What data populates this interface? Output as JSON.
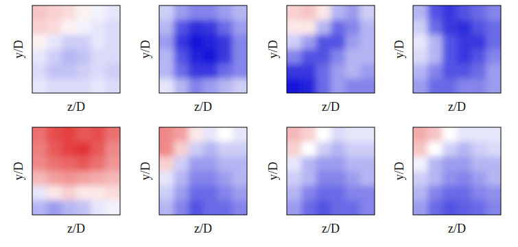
{
  "chart_data": [
    {
      "type": "heatmap",
      "xlabel": "z/D",
      "ylabel": "y/D",
      "tick_labels": false,
      "color_range": [
        -1,
        1
      ],
      "cells": [
        [
          0.25,
          0.2,
          0.15,
          0.05,
          -0.05,
          -0.1
        ],
        [
          0.2,
          0.15,
          0.05,
          -0.05,
          -0.1,
          -0.15
        ],
        [
          0.05,
          -0.1,
          -0.2,
          -0.2,
          -0.1,
          -0.15
        ],
        [
          -0.1,
          -0.2,
          -0.3,
          -0.25,
          -0.15,
          -0.15
        ],
        [
          -0.15,
          -0.25,
          -0.25,
          -0.2,
          -0.15,
          -0.2
        ],
        [
          -0.1,
          -0.15,
          -0.15,
          -0.15,
          -0.1,
          -0.15
        ]
      ]
    },
    {
      "type": "heatmap",
      "xlabel": "z/D",
      "ylabel": "y/D",
      "tick_labels": false,
      "color_range": [
        -1,
        1
      ],
      "cells": [
        [
          -0.2,
          -0.4,
          -0.5,
          -0.5,
          -0.4,
          -0.3
        ],
        [
          -0.3,
          -0.7,
          -0.85,
          -0.8,
          -0.6,
          -0.4
        ],
        [
          -0.4,
          -0.8,
          -0.95,
          -0.9,
          -0.8,
          -0.5
        ],
        [
          -0.3,
          -0.7,
          -0.9,
          -0.95,
          -0.8,
          -0.5
        ],
        [
          -0.3,
          -0.6,
          -0.8,
          -0.8,
          -0.6,
          -0.5
        ],
        [
          -0.1,
          -0.3,
          -0.5,
          -0.4,
          -0.3,
          -0.2
        ]
      ]
    },
    {
      "type": "heatmap",
      "xlabel": "z/D",
      "ylabel": "y/D",
      "tick_labels": false,
      "color_range": [
        -1,
        1
      ],
      "cells": [
        [
          0.2,
          0.25,
          0.1,
          -0.3,
          -0.4,
          -0.2
        ],
        [
          0.1,
          0.1,
          -0.3,
          -0.6,
          -0.5,
          -0.3
        ],
        [
          -0.2,
          -0.4,
          -0.7,
          -0.7,
          -0.4,
          -0.3
        ],
        [
          -0.5,
          -0.7,
          -0.7,
          -0.5,
          -0.3,
          -0.3
        ],
        [
          -0.8,
          -0.8,
          -0.6,
          -0.4,
          -0.3,
          -0.4
        ],
        [
          -0.95,
          -0.9,
          -0.6,
          -0.4,
          -0.5,
          -0.5
        ]
      ]
    },
    {
      "type": "heatmap",
      "xlabel": "z/D",
      "ylabel": "y/D",
      "tick_labels": false,
      "color_range": [
        -1,
        1
      ],
      "cells": [
        [
          -0.3,
          -0.7,
          -0.8,
          -0.7,
          -0.6,
          -0.5
        ],
        [
          -0.2,
          -0.6,
          -0.8,
          -0.85,
          -0.7,
          -0.6
        ],
        [
          -0.1,
          -0.3,
          -0.7,
          -0.8,
          -0.8,
          -0.6
        ],
        [
          -0.15,
          -0.3,
          -0.7,
          -0.8,
          -0.7,
          -0.5
        ],
        [
          -0.3,
          -0.5,
          -0.7,
          -0.7,
          -0.6,
          -0.4
        ],
        [
          -0.4,
          -0.6,
          -0.6,
          -0.5,
          -0.5,
          -0.4
        ]
      ]
    },
    {
      "type": "heatmap",
      "xlabel": "z/D",
      "ylabel": "y/D",
      "tick_labels": false,
      "color_range": [
        -1,
        1
      ],
      "cells": [
        [
          0.6,
          0.75,
          0.8,
          0.7,
          0.75,
          0.6
        ],
        [
          0.55,
          0.7,
          0.8,
          0.85,
          0.7,
          0.5
        ],
        [
          0.5,
          0.6,
          0.65,
          0.7,
          0.6,
          0.45
        ],
        [
          0.3,
          0.4,
          0.45,
          0.4,
          0.35,
          0.3
        ],
        [
          -0.1,
          0.1,
          0.2,
          0.1,
          0.1,
          0.15
        ],
        [
          -0.3,
          -0.4,
          -0.3,
          -0.25,
          -0.1,
          -0.05
        ]
      ]
    },
    {
      "type": "heatmap",
      "xlabel": "z/D",
      "ylabel": "y/D",
      "tick_labels": false,
      "color_range": [
        -1,
        1
      ],
      "cells": [
        [
          0.5,
          0.4,
          0.1,
          -0.1,
          0.0,
          -0.1
        ],
        [
          0.5,
          0.2,
          -0.2,
          -0.3,
          -0.2,
          -0.2
        ],
        [
          0.2,
          -0.2,
          -0.4,
          -0.4,
          -0.3,
          -0.3
        ],
        [
          -0.1,
          -0.3,
          -0.5,
          -0.5,
          -0.4,
          -0.3
        ],
        [
          -0.2,
          -0.4,
          -0.6,
          -0.6,
          -0.5,
          -0.4
        ],
        [
          -0.3,
          -0.5,
          -0.7,
          -0.6,
          -0.6,
          -0.5
        ]
      ]
    },
    {
      "type": "heatmap",
      "xlabel": "z/D",
      "ylabel": "y/D",
      "tick_labels": false,
      "color_range": [
        -1,
        1
      ],
      "cells": [
        [
          0.3,
          0.2,
          0.0,
          -0.15,
          -0.1,
          -0.1
        ],
        [
          0.2,
          0.0,
          -0.2,
          -0.3,
          -0.2,
          -0.2
        ],
        [
          -0.1,
          -0.3,
          -0.4,
          -0.4,
          -0.3,
          -0.3
        ],
        [
          -0.2,
          -0.3,
          -0.5,
          -0.5,
          -0.4,
          -0.3
        ],
        [
          -0.3,
          -0.5,
          -0.6,
          -0.6,
          -0.5,
          -0.5
        ],
        [
          -0.4,
          -0.6,
          -0.7,
          -0.6,
          -0.6,
          -0.5
        ]
      ]
    },
    {
      "type": "heatmap",
      "xlabel": "z/D",
      "ylabel": "y/D",
      "tick_labels": false,
      "color_range": [
        -1,
        1
      ],
      "cells": [
        [
          0.35,
          0.25,
          0.0,
          -0.1,
          -0.1,
          -0.1
        ],
        [
          0.25,
          0.0,
          -0.2,
          -0.3,
          -0.2,
          -0.15
        ],
        [
          -0.05,
          -0.3,
          -0.4,
          -0.4,
          -0.3,
          -0.3
        ],
        [
          -0.2,
          -0.3,
          -0.45,
          -0.5,
          -0.4,
          -0.3
        ],
        [
          -0.3,
          -0.5,
          -0.6,
          -0.6,
          -0.5,
          -0.45
        ],
        [
          -0.4,
          -0.6,
          -0.7,
          -0.65,
          -0.6,
          -0.5
        ]
      ]
    }
  ]
}
